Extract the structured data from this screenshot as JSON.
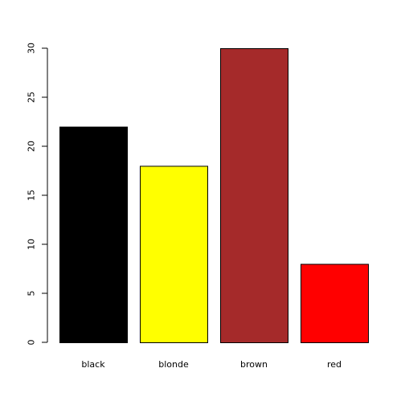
{
  "chart_data": {
    "type": "bar",
    "title": "",
    "xlabel": "",
    "ylabel": "",
    "categories": [
      "black",
      "blonde",
      "brown",
      "red"
    ],
    "values": [
      22,
      18,
      30,
      8
    ],
    "colors": [
      "#000000",
      "#ffff00",
      "#a52a2a",
      "#ff0000"
    ],
    "bar_border_color": "#000000",
    "ylim": [
      0,
      30
    ],
    "yticks": [
      0,
      5,
      10,
      15,
      20,
      25,
      30
    ],
    "ytick_labels": [
      "0",
      "5",
      "10",
      "15",
      "20",
      "25",
      "30"
    ],
    "grid": false,
    "legend": "none"
  }
}
